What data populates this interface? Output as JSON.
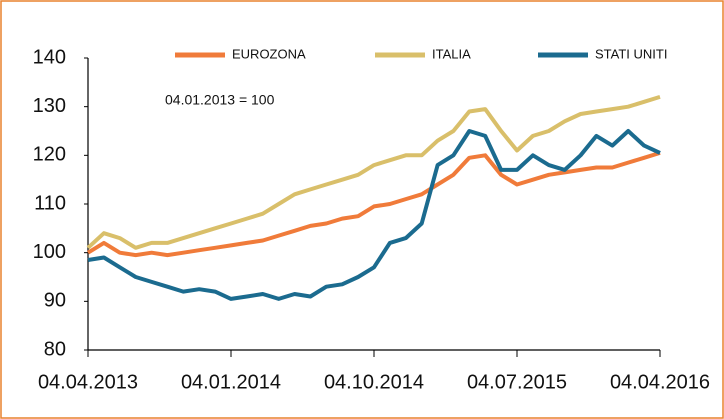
{
  "chart_data": {
    "type": "line",
    "annotation": "04.01.2013 = 100",
    "categories": [
      "04.04.2013",
      null,
      null,
      null,
      null,
      null,
      null,
      null,
      null,
      "04.01.2014",
      null,
      null,
      null,
      null,
      null,
      null,
      null,
      null,
      "04.10.2014",
      null,
      null,
      null,
      null,
      null,
      null,
      null,
      null,
      "04.07.2015",
      null,
      null,
      null,
      null,
      null,
      null,
      null,
      null,
      "04.04.2016"
    ],
    "series": [
      {
        "name": "EUROZONA",
        "color": "#f07b3a",
        "values": [
          100,
          102,
          100,
          99.5,
          100,
          99.5,
          100,
          100.5,
          101,
          101.5,
          102,
          102.5,
          103.5,
          104.5,
          105.5,
          106,
          107,
          107.5,
          109.5,
          110,
          111,
          112,
          114,
          116,
          119.5,
          120,
          116,
          114,
          115,
          116,
          116.5,
          117,
          117.5,
          117.5,
          118.5,
          119.5,
          120.5
        ]
      },
      {
        "name": "ITALIA",
        "color": "#d9bf6a",
        "values": [
          101,
          104,
          103,
          101,
          102,
          102,
          103,
          104,
          105,
          106,
          107,
          108,
          110,
          112,
          113,
          114,
          115,
          116,
          118,
          119,
          120,
          120,
          123,
          125,
          129,
          129.5,
          125,
          121,
          124,
          125,
          127,
          128.5,
          129,
          129.5,
          130,
          131,
          132
        ]
      },
      {
        "name": "STATI UNITI",
        "color": "#1b6b8f",
        "values": [
          98.5,
          99,
          97,
          95,
          94,
          93,
          92,
          92.5,
          92,
          90.5,
          91,
          91.5,
          90.5,
          91.5,
          91,
          93,
          93.5,
          95,
          97,
          102,
          103,
          106,
          118,
          120,
          125,
          124,
          117,
          117,
          120,
          118,
          117,
          120,
          124,
          122,
          125,
          122,
          120.5
        ]
      }
    ],
    "ylim": [
      80,
      140
    ],
    "yticks": [
      80,
      90,
      100,
      110,
      120,
      130,
      140
    ]
  }
}
